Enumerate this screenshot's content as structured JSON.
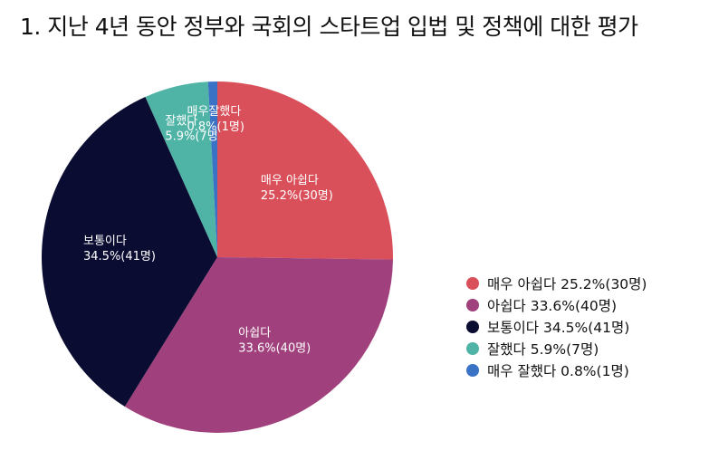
{
  "title": "1. 지난 4년 동안 정부와 국회의 스타트업 입법 및 정책에 대한 평가",
  "chart_data": {
    "type": "pie",
    "title": "1. 지난 4년 동안 정부와 국회의 스타트업 입법 및 정책에 대한 평가",
    "legend_position": "right",
    "slices": [
      {
        "label": "매우 아쉽다",
        "value": 30,
        "percent": 25.2,
        "color": "#d9505b",
        "label_line1": "매우 아쉽다",
        "label_line2": "25.2%(30명)",
        "legend": "매우 아쉽다 25.2%(30명)"
      },
      {
        "label": "아쉽다",
        "value": 40,
        "percent": 33.6,
        "color": "#a0407c",
        "label_line1": "아쉽다",
        "label_line2": "33.6%(40명)",
        "legend": "아쉽다 33.6%(40명)"
      },
      {
        "label": "보통이다",
        "value": 41,
        "percent": 34.5,
        "color": "#0b0c32",
        "label_line1": "보통이다",
        "label_line2": "34.5%(41명)",
        "legend": "보통이다 34.5%(41명)"
      },
      {
        "label": "잘했다",
        "value": 7,
        "percent": 5.9,
        "color": "#4fb3a5",
        "label_line1": "잘했다",
        "label_line2": "5.9%(7명",
        "legend": "잘했다 5.9%(7명)"
      },
      {
        "label": "매우 잘했다",
        "value": 1,
        "percent": 0.8,
        "color": "#3a72c5",
        "label_line1": "매우잘했다",
        "label_line2": "0.8%(1명)",
        "legend": "매우 잘했다 0.8%(1명)"
      }
    ]
  }
}
